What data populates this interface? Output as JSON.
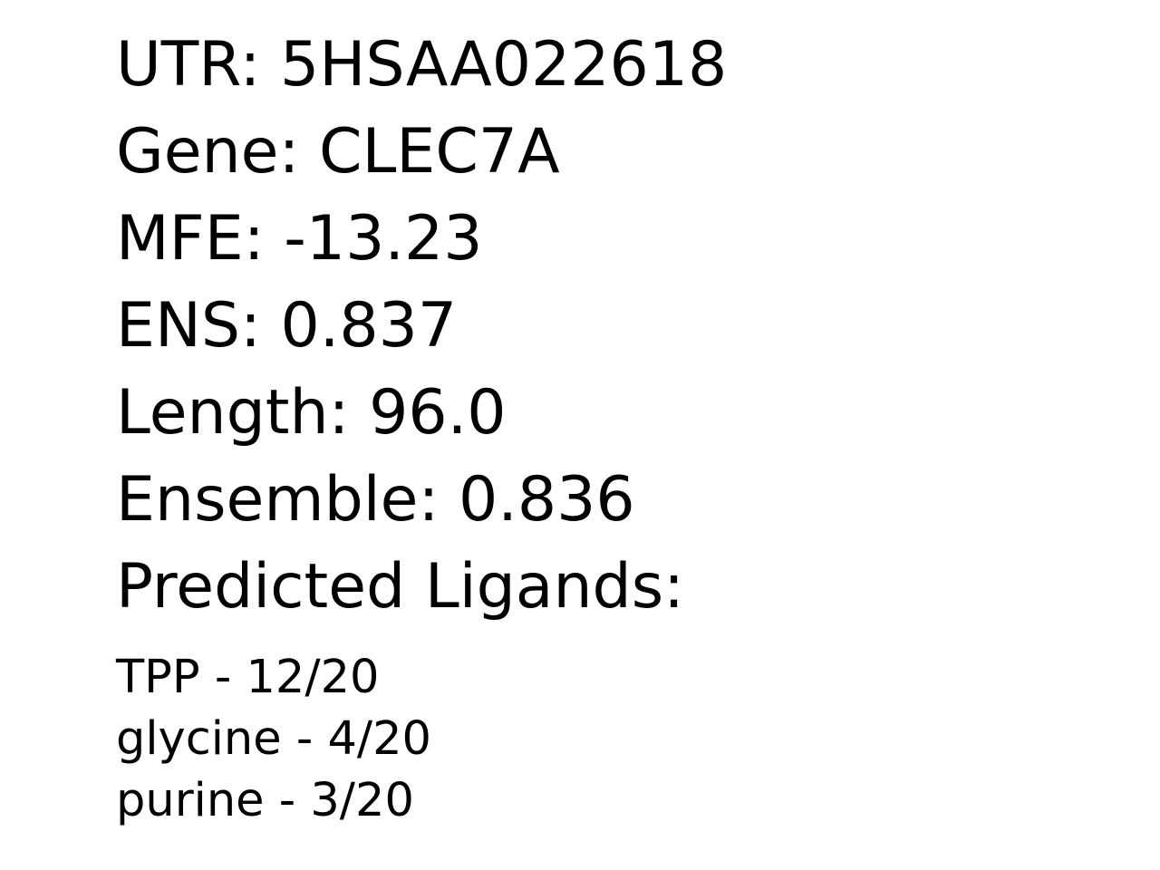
{
  "fields": {
    "utr": "UTR: 5HSAA022618",
    "gene": "Gene: CLEC7A",
    "mfe": "MFE: -13.23",
    "ens": "ENS: 0.837",
    "length": "Length: 96.0",
    "ensemble": "Ensemble: 0.836",
    "ligands_heading": "Predicted Ligands:"
  },
  "ligands": [
    "TPP - 12/20",
    "glycine - 4/20",
    "purine - 3/20"
  ]
}
